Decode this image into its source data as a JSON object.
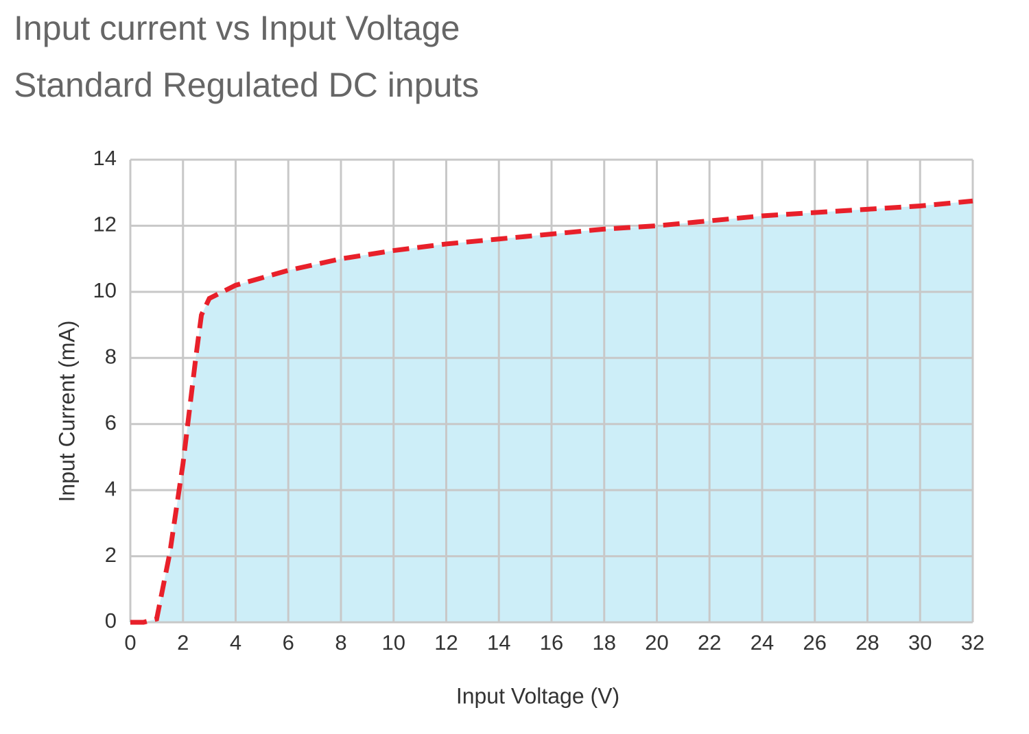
{
  "chart_data": {
    "type": "area",
    "title": "Input current vs Input Voltage",
    "subtitle": "Standard Regulated DC inputs",
    "x_label": "Input Voltage (V)",
    "y_label": "Input Current (mA)",
    "x": [
      0,
      0.5,
      1,
      1.5,
      2,
      2.5,
      2.7,
      3,
      4,
      6,
      8,
      10,
      12,
      14,
      16,
      18,
      20,
      22,
      24,
      26,
      28,
      30,
      32
    ],
    "values": [
      0,
      0,
      0.1,
      2.1,
      4.8,
      8.1,
      9.3,
      9.8,
      10.2,
      10.65,
      11.0,
      11.25,
      11.45,
      11.6,
      11.75,
      11.9,
      12.0,
      12.15,
      12.3,
      12.4,
      12.5,
      12.6,
      12.75
    ],
    "color": "#e8202a",
    "fill_color": "#cdeef8",
    "line_style": "dashed",
    "xlim": [
      0,
      32
    ],
    "xticks": [
      0,
      2,
      4,
      6,
      8,
      10,
      12,
      14,
      16,
      18,
      20,
      22,
      24,
      26,
      28,
      30,
      32
    ],
    "ylim": [
      0,
      14
    ],
    "yticks": [
      0,
      2,
      4,
      6,
      8,
      10,
      12,
      14
    ],
    "grid": true
  }
}
